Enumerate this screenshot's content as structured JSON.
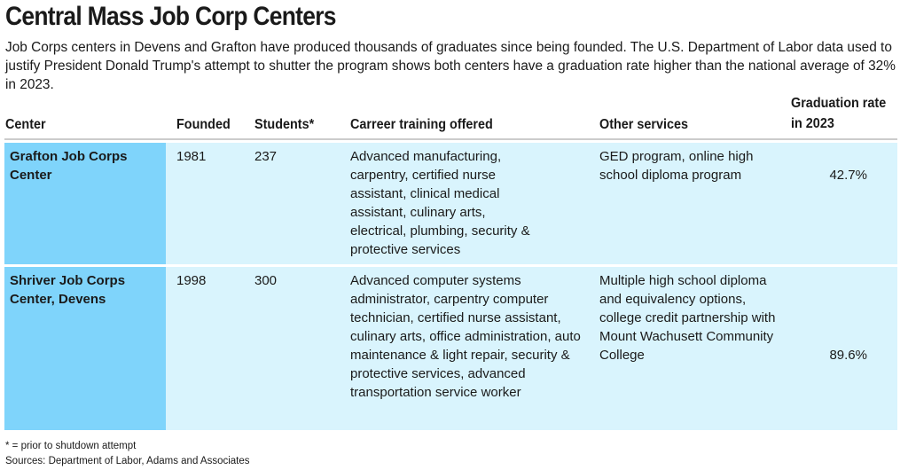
{
  "title": "Central Mass Job Corp Centers",
  "intro": "Job Corps centers in Devens and Grafton have produced thousands of graduates since being founded. The U.S. Department of Labor data used to justify President Donald Trump's attempt to shutter the program shows both centers have a graduation rate higher than the national average of 32% in 2023.",
  "colors": {
    "name_cell": "#7fd4fb",
    "row_bg": "#d9f4fd"
  },
  "chart_data": {
    "type": "table",
    "columns": [
      "Center",
      "Founded",
      "Students*",
      "Carreer training offered",
      "Other services",
      "Graduation rate in 2023"
    ],
    "rows": [
      {
        "center": "Grafton Job Corps Center",
        "founded": "1981",
        "students": "237",
        "training": "Advanced manufacturing, carpentry, certified nurse assistant, clinical medical assistant, culinary arts, electrical, plumbing, security & protective services",
        "services": "GED program, online high school diploma program",
        "rate": "42.7%"
      },
      {
        "center": "Shriver Job Corps Center, Devens",
        "founded": "1998",
        "students": "300",
        "training": "Advanced computer systems administrator, carpentry computer technician, certified nurse assistant, culinary arts, office administration, auto maintenance & light repair, security & protective services, advanced transportation service worker",
        "services": "Multiple high school diploma and equivalency options, college credit partnership with Mount Wachusett Community College",
        "rate": "89.6%"
      }
    ]
  },
  "footnote": "* = prior to shutdown attempt",
  "sources": "Sources: Department of Labor, Adams and Associates"
}
